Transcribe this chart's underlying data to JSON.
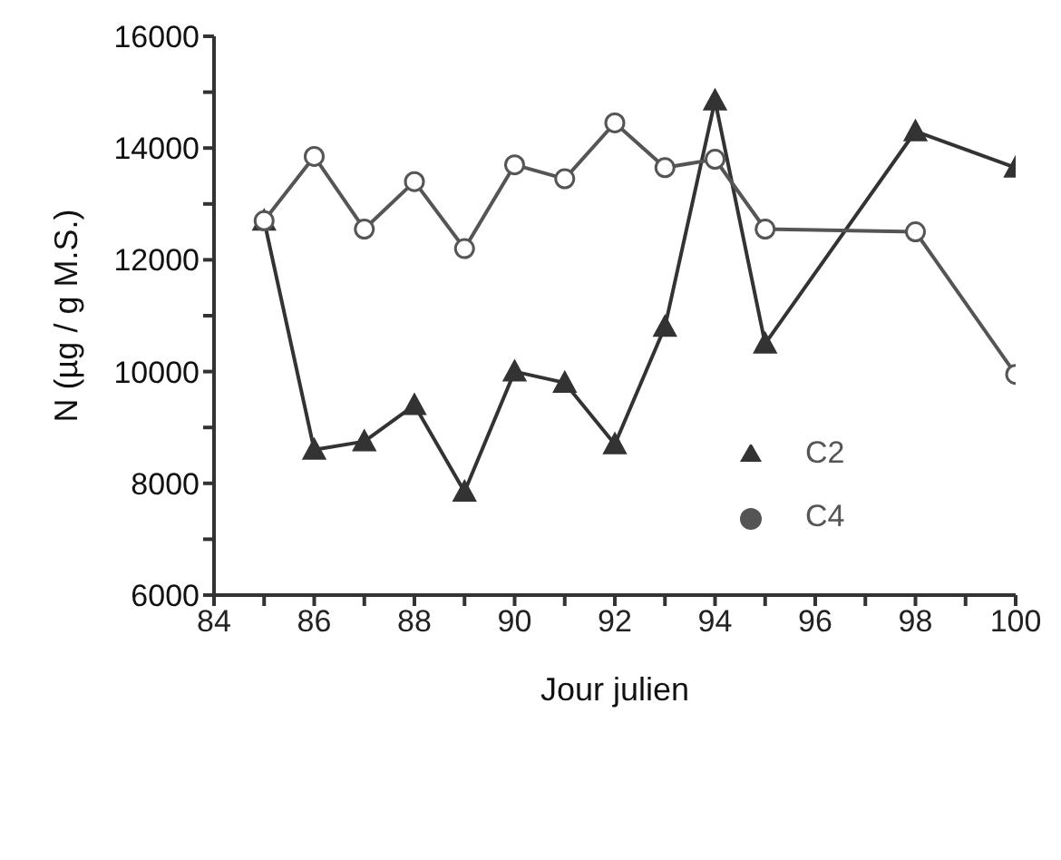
{
  "chart_data": {
    "type": "line",
    "xlabel": "Jour julien",
    "ylabel": "N (µg / g M.S.)",
    "xlim": [
      84,
      100
    ],
    "xticks": [
      84,
      {
        "value": 85,
        "label": null
      },
      86,
      {
        "value": 87,
        "label": null
      },
      88,
      {
        "value": 89,
        "label": null
      },
      90,
      {
        "value": 91,
        "label": null
      },
      92,
      {
        "value": 93,
        "label": null
      },
      94,
      {
        "value": 95,
        "label": null
      },
      96,
      {
        "value": 97,
        "label": null
      },
      98,
      {
        "value": 99,
        "label": null
      },
      100
    ],
    "ylim": [
      6000,
      16000
    ],
    "yticks": [
      6000,
      {
        "value": 7000,
        "label": null
      },
      8000,
      {
        "value": 9000,
        "label": null
      },
      10000,
      {
        "value": 11000,
        "label": null
      },
      12000,
      {
        "value": 13000,
        "label": null
      },
      14000,
      {
        "value": 15000,
        "label": null
      },
      16000
    ],
    "x": [
      85,
      86,
      87,
      88,
      89,
      90,
      91,
      92,
      93,
      94,
      95,
      98,
      100
    ],
    "grid": false,
    "legend": "bottom right",
    "line_style": "solid",
    "series": [
      {
        "name": "C2",
        "color": "#333333",
        "marker": "triangle",
        "values": [
          12700,
          8600,
          8750,
          9400,
          7850,
          10000,
          9800,
          8700,
          10800,
          14850,
          10500,
          14300,
          13650
        ]
      },
      {
        "name": "C4",
        "color": "#555555",
        "marker": "circle",
        "values": [
          12700,
          13850,
          12550,
          13400,
          12200,
          13700,
          13450,
          14450,
          13650,
          13800,
          12550,
          12500,
          9950
        ]
      }
    ]
  }
}
